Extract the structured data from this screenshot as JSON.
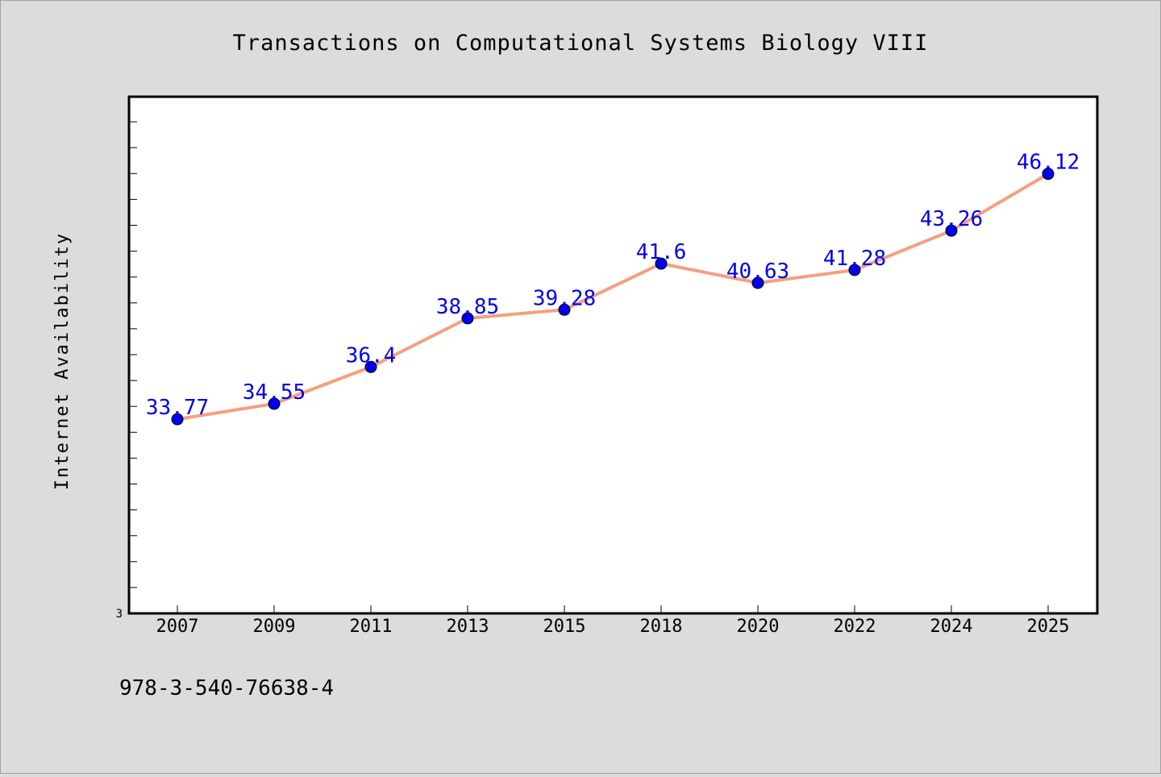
{
  "chart_data": {
    "type": "line",
    "title": "Transactions on Computational Systems Biology VIII",
    "xlabel": "",
    "ylabel": "Internet Availability",
    "y_tick_labels": [
      "3"
    ],
    "ylim": [
      24.0,
      50.0
    ],
    "categories": [
      "2007",
      "2009",
      "2011",
      "2013",
      "2015",
      "2018",
      "2020",
      "2022",
      "2024",
      "2025"
    ],
    "series": [
      {
        "values": [
          33.77,
          34.55,
          36.4,
          38.85,
          39.28,
          41.6,
          40.63,
          41.28,
          43.26,
          46.12
        ],
        "labels": [
          "33.77",
          "34.55",
          "36.4",
          "38.85",
          "39.28",
          "41.6",
          "40.63",
          "41.28",
          "43.26",
          "46.12"
        ],
        "line_color": "#f4a07f",
        "marker_color": "#0000ee"
      }
    ],
    "grid": false,
    "legend": "none",
    "footer_text": "978-3-540-76638-4",
    "colors": {
      "background": "#dcdcdc",
      "plot_background": "#ffffff",
      "label_color": "#0000ee"
    }
  }
}
